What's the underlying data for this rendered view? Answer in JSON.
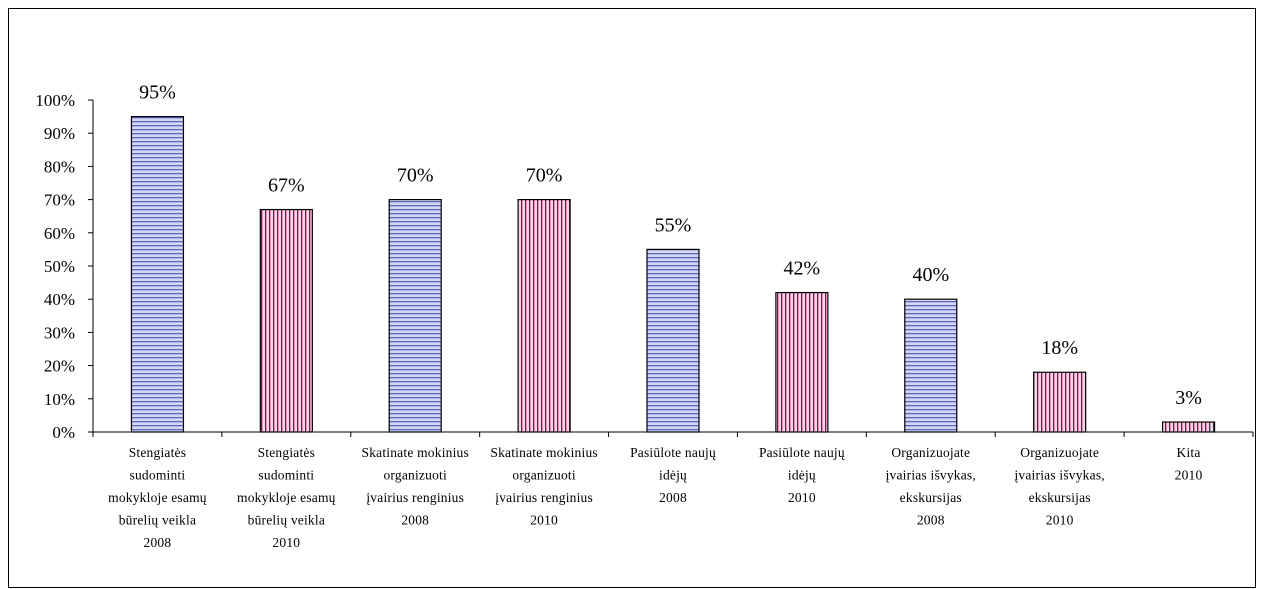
{
  "chart_data": {
    "type": "bar",
    "title": "",
    "xlabel": "",
    "ylabel": "",
    "ylim": [
      0,
      100
    ],
    "yticks": [
      "0%",
      "10%",
      "20%",
      "30%",
      "40%",
      "50%",
      "60%",
      "70%",
      "80%",
      "90%",
      "100%"
    ],
    "grid": false,
    "legend": "none",
    "categories": [
      [
        "Stengiatės",
        "sudominti",
        "mokykloje esamų",
        "būrelių veikla",
        "2008"
      ],
      [
        "Stengiatės",
        "sudominti",
        "mokykloje esamų",
        "būrelių veikla",
        "2010"
      ],
      [
        "Skatinate mokinius",
        "organizuoti",
        "įvairius renginius",
        "2008"
      ],
      [
        "Skatinate mokinius",
        "organizuoti",
        "įvairius renginius",
        "2010"
      ],
      [
        "Pasiūlote naujų",
        "idėjų",
        "2008"
      ],
      [
        "Pasiūlote naujų",
        "idėjų",
        "2010"
      ],
      [
        "Organizuojate",
        "įvairias išvykas,",
        "ekskursijas",
        "2008"
      ],
      [
        "Organizuojate",
        "įvairias išvykas,",
        "ekskursijas",
        "2010"
      ],
      [
        "Kita",
        "2010"
      ]
    ],
    "values": [
      95,
      67,
      70,
      70,
      55,
      42,
      40,
      18,
      3
    ],
    "data_labels": [
      "95%",
      "67%",
      "70%",
      "70%",
      "55%",
      "42%",
      "40%",
      "18%",
      "3%"
    ],
    "bar_styles": [
      "2008",
      "2010",
      "2008",
      "2010",
      "2008",
      "2010",
      "2008",
      "2010",
      "2010"
    ],
    "colors": {
      "2008_fill": "#d4d8f4",
      "2008_stripe": "#5f68b8",
      "2010_fill": "#f2d8e6",
      "2010_stripe": "#80104a",
      "axis": "#000000"
    }
  }
}
